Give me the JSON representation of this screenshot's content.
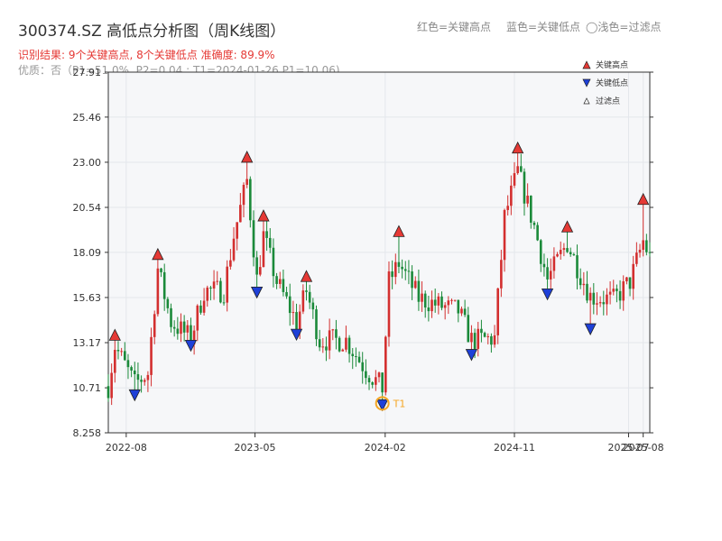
{
  "title": "300374.SZ 高低点分析图（周K线图）",
  "subtitle": "识别结果: 9个关键高点, 8个关键低点  准确度: 89.9%",
  "subtitle2": "优质：否（P1=51.0%, P2=0.04 ; T1=2024-01-26 P1=10.06)",
  "top_legend": [
    "红色=关键高点",
    "蓝色=关键低点",
    "◯浅色=过滤点"
  ],
  "colors": {
    "up": "#d32f2f",
    "down": "#1b8a3a",
    "high_marker": "#e53935",
    "low_marker": "#1e40d8",
    "t1": "#f5a623",
    "plot_bg": "#f6f7f9"
  },
  "chart_data": {
    "type": "candlestick",
    "title": "300374.SZ 高低点分析图（周K线图）",
    "xlabel": "",
    "ylabel": "",
    "ylim": [
      8.258,
      27.91
    ],
    "ytick_labels": [
      "8.258",
      "10.71",
      "13.17",
      "15.63",
      "18.09",
      "20.54",
      "23.00",
      "25.46",
      "27.91"
    ],
    "xlim": [
      "2022-06-24",
      "2025-08-15"
    ],
    "xtick_labels": [
      "2022-08",
      "2023-05",
      "2024-02",
      "2024-11",
      "2025-07",
      "2025-08"
    ],
    "grid": true,
    "legend_position": "top-right",
    "legend": [
      {
        "label": "关键高点",
        "marker": "up-triangle",
        "color": "#e53935"
      },
      {
        "label": "关键低点",
        "marker": "down-triangle",
        "color": "#1e40d8"
      },
      {
        "label": "过滤点",
        "marker": "small-triangle",
        "color": "#ffffff"
      }
    ],
    "key_highs": [
      {
        "date": "2022-07-08",
        "price": 13.3
      },
      {
        "date": "2022-10-07",
        "price": 17.7
      },
      {
        "date": "2023-04-14",
        "price": 23.0
      },
      {
        "date": "2023-05-19",
        "price": 19.8
      },
      {
        "date": "2023-08-18",
        "price": 16.5
      },
      {
        "date": "2024-03-01",
        "price": 18.95
      },
      {
        "date": "2024-11-08",
        "price": 23.5
      },
      {
        "date": "2025-02-21",
        "price": 19.2
      },
      {
        "date": "2025-08-01",
        "price": 20.7
      }
    ],
    "key_lows": [
      {
        "date": "2022-08-19",
        "price": 10.6
      },
      {
        "date": "2022-12-16",
        "price": 13.3
      },
      {
        "date": "2023-05-05",
        "price": 16.2
      },
      {
        "date": "2023-07-28",
        "price": 13.9
      },
      {
        "date": "2024-01-26",
        "price": 10.06
      },
      {
        "date": "2024-08-02",
        "price": 12.8
      },
      {
        "date": "2025-01-10",
        "price": 16.1
      },
      {
        "date": "2025-04-11",
        "price": 14.2
      }
    ],
    "t1": {
      "label": "T1",
      "date": "2024-01-26",
      "price": 10.06
    },
    "anchors": [
      [
        "2022-06-24",
        10.8
      ],
      [
        "2022-07-08",
        13.0
      ],
      [
        "2022-08-19",
        10.9
      ],
      [
        "2022-09-16",
        11.5
      ],
      [
        "2022-10-07",
        17.2
      ],
      [
        "2022-11-04",
        14.3
      ],
      [
        "2022-12-16",
        13.4
      ],
      [
        "2023-01-13",
        16.0
      ],
      [
        "2023-02-24",
        16.0
      ],
      [
        "2023-03-17",
        19.0
      ],
      [
        "2023-04-14",
        22.0
      ],
      [
        "2023-05-05",
        16.6
      ],
      [
        "2023-05-19",
        19.0
      ],
      [
        "2023-06-16",
        16.5
      ],
      [
        "2023-07-28",
        14.3
      ],
      [
        "2023-08-18",
        16.0
      ],
      [
        "2023-09-15",
        13.3
      ],
      [
        "2023-11-10",
        13.3
      ],
      [
        "2023-12-22",
        11.7
      ],
      [
        "2024-01-26",
        10.7
      ],
      [
        "2024-02-09",
        16.5
      ],
      [
        "2024-03-01",
        17.5
      ],
      [
        "2024-04-12",
        15.6
      ],
      [
        "2024-05-24",
        15.2
      ],
      [
        "2024-07-05",
        14.9
      ],
      [
        "2024-08-02",
        13.3
      ],
      [
        "2024-09-20",
        13.4
      ],
      [
        "2024-10-11",
        20.0
      ],
      [
        "2024-11-08",
        22.5
      ],
      [
        "2024-12-13",
        19.5
      ],
      [
        "2025-01-10",
        16.6
      ],
      [
        "2025-02-21",
        18.6
      ],
      [
        "2025-03-21",
        16.9
      ],
      [
        "2025-04-11",
        15.7
      ],
      [
        "2025-05-30",
        15.5
      ],
      [
        "2025-07-04",
        16.5
      ],
      [
        "2025-08-01",
        18.7
      ],
      [
        "2025-08-15",
        17.8
      ]
    ]
  }
}
